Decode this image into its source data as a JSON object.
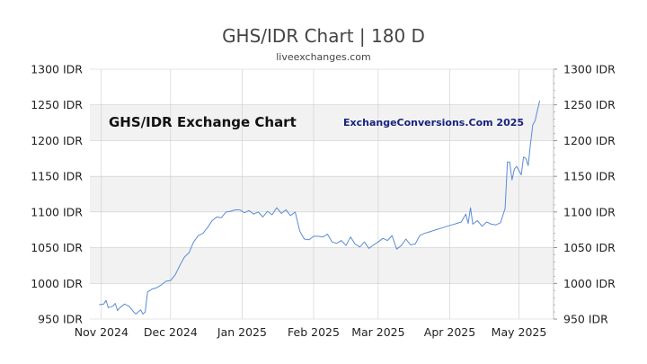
{
  "chart_data": {
    "type": "line",
    "title": "GHS/IDR Chart | 180 D",
    "subtitle": "liveexchanges.com",
    "inner_title": "GHS/IDR Exchange Chart",
    "watermark": "ExchangeConversions.Com 2025",
    "line_color": "#5b8bd6",
    "band_color": "#f2f2f2",
    "grid_color": "#cccccc",
    "ylim": [
      950,
      1300
    ],
    "y_ticks": [
      {
        "value": 1300,
        "label": "1300 IDR"
      },
      {
        "value": 1250,
        "label": "1250 IDR"
      },
      {
        "value": 1200,
        "label": "1200 IDR"
      },
      {
        "value": 1150,
        "label": "1150 IDR"
      },
      {
        "value": 1100,
        "label": "1100 IDR"
      },
      {
        "value": 1050,
        "label": "1050 IDR"
      },
      {
        "value": 1000,
        "label": "1000 IDR"
      },
      {
        "value": 950,
        "label": "950 IDR"
      }
    ],
    "bands": [
      [
        1200,
        1250
      ],
      [
        1100,
        1150
      ],
      [
        1000,
        1050
      ]
    ],
    "xlim": [
      "2024-10-27",
      "2025-05-16"
    ],
    "x_ticks": [
      {
        "date": "2024-11-01",
        "label": "Nov 2024"
      },
      {
        "date": "2024-12-01",
        "label": "Dec 2024"
      },
      {
        "date": "2025-01-01",
        "label": "Jan 2025"
      },
      {
        "date": "2025-02-01",
        "label": "Feb 2025"
      },
      {
        "date": "2025-03-01",
        "label": "Mar 2025"
      },
      {
        "date": "2025-04-01",
        "label": "Apr 2025"
      },
      {
        "date": "2025-05-01",
        "label": "May 2025"
      }
    ],
    "series": [
      {
        "points": [
          [
            "2024-10-31",
            970
          ],
          [
            "2024-11-02",
            971
          ],
          [
            "2024-11-03",
            976
          ],
          [
            "2024-11-04",
            966
          ],
          [
            "2024-11-06",
            968
          ],
          [
            "2024-11-07",
            972
          ],
          [
            "2024-11-08",
            962
          ],
          [
            "2024-11-09",
            966
          ],
          [
            "2024-11-11",
            971
          ],
          [
            "2024-11-13",
            968
          ],
          [
            "2024-11-15",
            960
          ],
          [
            "2024-11-16",
            957
          ],
          [
            "2024-11-18",
            963
          ],
          [
            "2024-11-19",
            957
          ],
          [
            "2024-11-20",
            960
          ],
          [
            "2024-11-21",
            988
          ],
          [
            "2024-11-23",
            992
          ],
          [
            "2024-11-25",
            994
          ],
          [
            "2024-11-27",
            998
          ],
          [
            "2024-11-29",
            1003
          ],
          [
            "2024-12-01",
            1004
          ],
          [
            "2024-12-03",
            1012
          ],
          [
            "2024-12-05",
            1025
          ],
          [
            "2024-12-07",
            1037
          ],
          [
            "2024-12-09",
            1043
          ],
          [
            "2024-12-11",
            1058
          ],
          [
            "2024-12-13",
            1067
          ],
          [
            "2024-12-15",
            1070
          ],
          [
            "2024-12-17",
            1078
          ],
          [
            "2024-12-19",
            1088
          ],
          [
            "2024-12-21",
            1093
          ],
          [
            "2024-12-23",
            1092
          ],
          [
            "2024-12-25",
            1100
          ],
          [
            "2024-12-27",
            1101
          ],
          [
            "2024-12-29",
            1103
          ],
          [
            "2024-12-31",
            1103
          ],
          [
            "2025-01-02",
            1099
          ],
          [
            "2025-01-04",
            1102
          ],
          [
            "2025-01-06",
            1097
          ],
          [
            "2025-01-08",
            1100
          ],
          [
            "2025-01-10",
            1093
          ],
          [
            "2025-01-12",
            1101
          ],
          [
            "2025-01-14",
            1096
          ],
          [
            "2025-01-16",
            1106
          ],
          [
            "2025-01-18",
            1098
          ],
          [
            "2025-01-20",
            1103
          ],
          [
            "2025-01-22",
            1095
          ],
          [
            "2025-01-24",
            1100
          ],
          [
            "2025-01-26",
            1073
          ],
          [
            "2025-01-28",
            1062
          ],
          [
            "2025-01-30",
            1061
          ],
          [
            "2025-02-01",
            1066
          ],
          [
            "2025-02-03",
            1066
          ],
          [
            "2025-02-05",
            1065
          ],
          [
            "2025-02-07",
            1069
          ],
          [
            "2025-02-09",
            1058
          ],
          [
            "2025-02-11",
            1056
          ],
          [
            "2025-02-13",
            1060
          ],
          [
            "2025-02-15",
            1053
          ],
          [
            "2025-02-17",
            1065
          ],
          [
            "2025-02-19",
            1055
          ],
          [
            "2025-02-21",
            1051
          ],
          [
            "2025-02-23",
            1058
          ],
          [
            "2025-02-25",
            1049
          ],
          [
            "2025-02-27",
            1054
          ],
          [
            "2025-03-01",
            1058
          ],
          [
            "2025-03-03",
            1063
          ],
          [
            "2025-03-05",
            1060
          ],
          [
            "2025-03-07",
            1067
          ],
          [
            "2025-03-09",
            1048
          ],
          [
            "2025-03-11",
            1053
          ],
          [
            "2025-03-13",
            1062
          ],
          [
            "2025-03-15",
            1054
          ],
          [
            "2025-03-17",
            1055
          ],
          [
            "2025-03-19",
            1067
          ],
          [
            "2025-03-21",
            1070
          ],
          [
            "2025-03-23",
            1072
          ],
          [
            "2025-03-25",
            1074
          ],
          [
            "2025-03-27",
            1076
          ],
          [
            "2025-03-29",
            1078
          ],
          [
            "2025-03-31",
            1080
          ],
          [
            "2025-04-02",
            1082
          ],
          [
            "2025-04-04",
            1084
          ],
          [
            "2025-04-06",
            1086
          ],
          [
            "2025-04-08",
            1097
          ],
          [
            "2025-04-09",
            1084
          ],
          [
            "2025-04-10",
            1106
          ],
          [
            "2025-04-11",
            1083
          ],
          [
            "2025-04-13",
            1088
          ],
          [
            "2025-04-15",
            1080
          ],
          [
            "2025-04-17",
            1086
          ],
          [
            "2025-04-19",
            1083
          ],
          [
            "2025-04-21",
            1082
          ],
          [
            "2025-04-23",
            1085
          ],
          [
            "2025-04-25",
            1105
          ],
          [
            "2025-04-26",
            1170
          ],
          [
            "2025-04-27",
            1170
          ],
          [
            "2025-04-28",
            1145
          ],
          [
            "2025-04-29",
            1160
          ],
          [
            "2025-04-30",
            1164
          ],
          [
            "2025-05-01",
            1158
          ],
          [
            "2025-05-02",
            1152
          ],
          [
            "2025-05-03",
            1177
          ],
          [
            "2025-05-04",
            1175
          ],
          [
            "2025-05-05",
            1165
          ],
          [
            "2025-05-06",
            1195
          ],
          [
            "2025-05-07",
            1222
          ],
          [
            "2025-05-08",
            1228
          ],
          [
            "2025-05-09",
            1242
          ],
          [
            "2025-05-10",
            1256
          ]
        ]
      }
    ]
  }
}
